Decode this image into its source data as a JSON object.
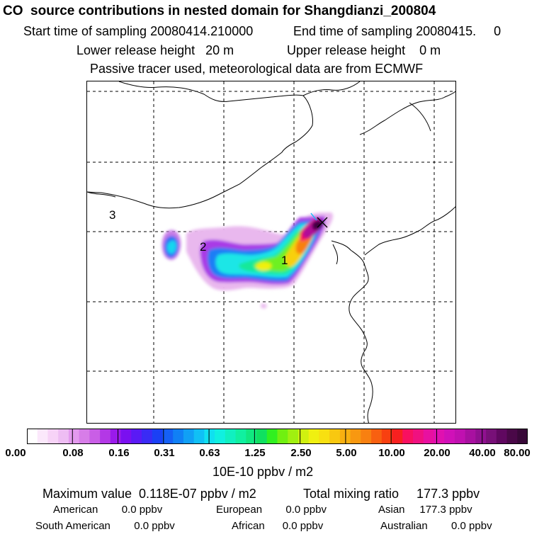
{
  "title": "CO  source contributions in nested domain for Shangdianzi_200804",
  "header": {
    "start_label": "Start time of sampling 20080414.210000",
    "end_label": "End time of sampling 20080415.     0",
    "lower_label": "Lower release height   20 m",
    "upper_label": "Upper release height    0 m",
    "note": "Passive tracer used, meteorological data are from ECMWF"
  },
  "map": {
    "region_labels": [
      "1",
      "2",
      "3"
    ],
    "receptor_marker": "x-marker"
  },
  "colorbar": {
    "ticks": [
      "0.00",
      "0.08",
      "0.16",
      "0.31",
      "0.63",
      "1.25",
      "2.50",
      "5.00",
      "10.00",
      "20.00",
      "40.00",
      "80.00"
    ],
    "unit": "10E-10 ppbv / m2",
    "colors": [
      "#ffffff",
      "#fbe8fb",
      "#f7d3f7",
      "#eebdf3",
      "#e39aee",
      "#d77de8",
      "#c95ee6",
      "#b338e6",
      "#9a1aeb",
      "#7a10f0",
      "#5a1af5",
      "#3a2bf5",
      "#1a40f5",
      "#1560f5",
      "#1080f5",
      "#10a0f5",
      "#10c0f5",
      "#10e0f0",
      "#10f0e0",
      "#10f0c0",
      "#10f0a0",
      "#10e880",
      "#10e060",
      "#30f020",
      "#70f010",
      "#a0f010",
      "#d0f010",
      "#f0f010",
      "#f8e010",
      "#f8c810",
      "#f8b010",
      "#f89810",
      "#f88010",
      "#f86010",
      "#f84010",
      "#f82020",
      "#f81060",
      "#f01080",
      "#e810a0",
      "#e010b0",
      "#d010b8",
      "#c010b0",
      "#a810a0",
      "#901090",
      "#781078",
      "#600860",
      "#4a0848",
      "#380838"
    ]
  },
  "footer": {
    "max_label": "Maximum value  0.118E-07 ppbv / m2",
    "total_label": "Total mixing ratio     177.3 ppbv",
    "american": "American        0.0 ppbv",
    "european": "European        0.0 ppbv",
    "asian": "Asian     177.3 ppbv",
    "south_american": "South American        0.0 ppbv",
    "african": "African      0.0 ppbv",
    "australian": "Australian        0.0 ppbv"
  }
}
